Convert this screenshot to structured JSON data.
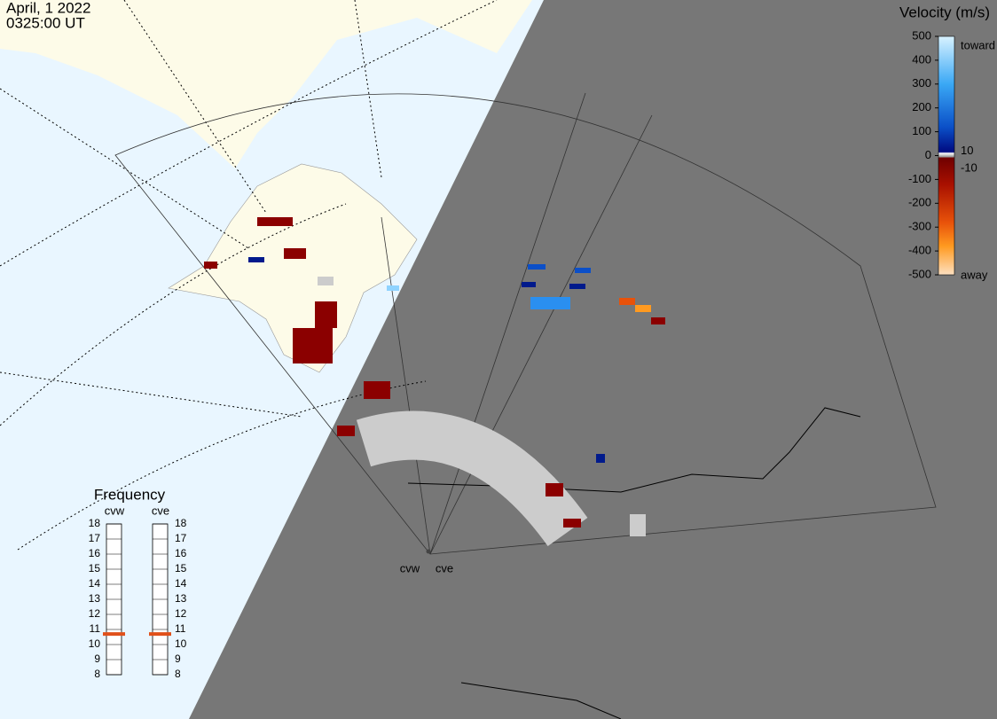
{
  "header": {
    "date": "April, 1 2022",
    "time": "0325:00 UT"
  },
  "velocity_scale": {
    "title": "Velocity (m/s)",
    "lim": [
      -500,
      500
    ],
    "ticks": [
      500,
      400,
      300,
      200,
      100,
      0,
      -100,
      -200,
      -300,
      -400,
      -500
    ],
    "gate_ticks": [
      10,
      -10
    ],
    "toward": "toward",
    "away": "away"
  },
  "frequency": {
    "title": "Frequency",
    "lim": [
      8,
      18
    ],
    "ticks": [
      8,
      9,
      10,
      11,
      12,
      13,
      14,
      15,
      16,
      17,
      18
    ],
    "radars": [
      {
        "name": "cvw",
        "value": 10.7
      },
      {
        "name": "cve",
        "value": 10.7
      }
    ]
  },
  "radar_sites": [
    "cvw",
    "cve"
  ]
}
